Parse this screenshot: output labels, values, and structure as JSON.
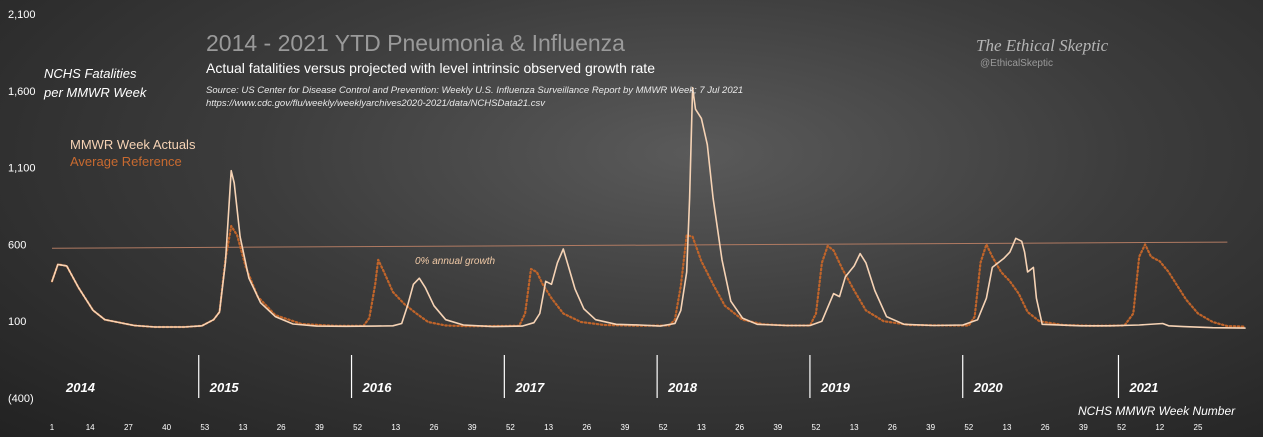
{
  "chart_data": {
    "type": "line",
    "title": "2014 - 2021 YTD Pneumonia & Influenza",
    "subtitle": "Actual fatalities versus projected with level intrinsic observed growth rate",
    "source_line1": "Source: US Center for Disease Control and Prevention: Weekly U.S. Influenza Surveillance Report by MMWR Week; 7 Jul 2021",
    "source_line2": "https://www.cdc.gov/flu/weekly/weeklyarchives2020-2021/data/NCHSData21.csv",
    "brand": "The Ethical Skeptic",
    "handle": "@EthicalSkeptic",
    "ylabel_line1": "NCHS Fatalities",
    "ylabel_line2": "per MMWR Week",
    "xlabel": "NCHS MMWR Week Number",
    "annotation": "0% annual growth",
    "yticks": [
      "2,100",
      "1,600",
      "1,100",
      "600",
      "100",
      "(400)"
    ],
    "ylim": [
      -400,
      2100
    ],
    "xticks": [
      "1",
      "14",
      "27",
      "40",
      "53",
      "13",
      "26",
      "39",
      "52",
      "13",
      "26",
      "39",
      "52",
      "13",
      "26",
      "39",
      "52",
      "13",
      "26",
      "39",
      "52",
      "13",
      "26",
      "39",
      "52",
      "13",
      "26",
      "39",
      "52",
      "12",
      "25"
    ],
    "year_labels": [
      "2014",
      "2015",
      "2016",
      "2017",
      "2018",
      "2019",
      "2020",
      "2021"
    ],
    "legend": [
      "MMWR Week Actuals",
      "Average Reference"
    ],
    "colors": {
      "actuals": "#f6d3b5",
      "reference": "#c0642a",
      "trend": "#b07a62"
    },
    "reference_line": {
      "start": 575,
      "end": 615
    },
    "series": [
      {
        "name": "MMWR Week Actuals",
        "anchors": [
          [
            0,
            360
          ],
          [
            2,
            470
          ],
          [
            5,
            460
          ],
          [
            9,
            320
          ],
          [
            14,
            170
          ],
          [
            18,
            110
          ],
          [
            22,
            95
          ],
          [
            28,
            72
          ],
          [
            35,
            62
          ],
          [
            45,
            62
          ],
          [
            51,
            70
          ],
          [
            55,
            110
          ],
          [
            57,
            160
          ],
          [
            59,
            480
          ],
          [
            61,
            1080
          ],
          [
            62,
            1000
          ],
          [
            64,
            650
          ],
          [
            67,
            380
          ],
          [
            71,
            220
          ],
          [
            76,
            130
          ],
          [
            82,
            82
          ],
          [
            90,
            68
          ],
          [
            100,
            67
          ],
          [
            110,
            68
          ],
          [
            116,
            70
          ],
          [
            119,
            85
          ],
          [
            121,
            200
          ],
          [
            123,
            340
          ],
          [
            125,
            380
          ],
          [
            127,
            320
          ],
          [
            130,
            200
          ],
          [
            134,
            110
          ],
          [
            140,
            75
          ],
          [
            150,
            65
          ],
          [
            160,
            68
          ],
          [
            164,
            90
          ],
          [
            166,
            150
          ],
          [
            168,
            360
          ],
          [
            170,
            340
          ],
          [
            172,
            480
          ],
          [
            174,
            570
          ],
          [
            176,
            440
          ],
          [
            178,
            310
          ],
          [
            181,
            180
          ],
          [
            185,
            110
          ],
          [
            192,
            80
          ],
          [
            200,
            75
          ],
          [
            207,
            68
          ],
          [
            212,
            85
          ],
          [
            214,
            170
          ],
          [
            216,
            420
          ],
          [
            217,
            900
          ],
          [
            218,
            1620
          ],
          [
            219,
            1480
          ],
          [
            221,
            1420
          ],
          [
            223,
            1250
          ],
          [
            225,
            900
          ],
          [
            228,
            500
          ],
          [
            231,
            230
          ],
          [
            235,
            120
          ],
          [
            240,
            80
          ],
          [
            250,
            72
          ],
          [
            258,
            72
          ],
          [
            262,
            100
          ],
          [
            264,
            190
          ],
          [
            266,
            280
          ],
          [
            268,
            260
          ],
          [
            270,
            390
          ],
          [
            273,
            460
          ],
          [
            275,
            540
          ],
          [
            277,
            480
          ],
          [
            280,
            300
          ],
          [
            284,
            130
          ],
          [
            290,
            80
          ],
          [
            300,
            72
          ],
          [
            310,
            75
          ],
          [
            315,
            110
          ],
          [
            318,
            250
          ],
          [
            320,
            450
          ],
          [
            322,
            480
          ],
          [
            324,
            510
          ],
          [
            326,
            550
          ],
          [
            328,
            640
          ],
          [
            330,
            620
          ],
          [
            331,
            550
          ],
          [
            332,
            420
          ],
          [
            334,
            450
          ],
          [
            335,
            250
          ],
          [
            337,
            80
          ],
          [
            350,
            70
          ],
          [
            360,
            70
          ],
          [
            370,
            75
          ],
          [
            378,
            85
          ],
          [
            380,
            70
          ],
          [
            385,
            65
          ],
          [
            395,
            58
          ],
          [
            406,
            55
          ]
        ]
      },
      {
        "name": "Average Reference",
        "anchors": [
          [
            0,
            360
          ],
          [
            2,
            470
          ],
          [
            5,
            460
          ],
          [
            9,
            320
          ],
          [
            14,
            170
          ],
          [
            18,
            110
          ],
          [
            22,
            95
          ],
          [
            28,
            72
          ],
          [
            35,
            62
          ],
          [
            45,
            62
          ],
          [
            51,
            70
          ],
          [
            55,
            110
          ],
          [
            57,
            160
          ],
          [
            59,
            500
          ],
          [
            61,
            720
          ],
          [
            63,
            660
          ],
          [
            66,
            450
          ],
          [
            70,
            260
          ],
          [
            76,
            140
          ],
          [
            85,
            82
          ],
          [
            96,
            70
          ],
          [
            106,
            70
          ],
          [
            108,
            120
          ],
          [
            110,
            340
          ],
          [
            111,
            500
          ],
          [
            113,
            420
          ],
          [
            116,
            290
          ],
          [
            120,
            210
          ],
          [
            124,
            150
          ],
          [
            128,
            95
          ],
          [
            134,
            72
          ],
          [
            140,
            68
          ],
          [
            148,
            68
          ],
          [
            159,
            70
          ],
          [
            161,
            150
          ],
          [
            163,
            440
          ],
          [
            165,
            420
          ],
          [
            167,
            340
          ],
          [
            170,
            250
          ],
          [
            174,
            150
          ],
          [
            180,
            95
          ],
          [
            188,
            75
          ],
          [
            200,
            70
          ],
          [
            210,
            72
          ],
          [
            212,
            110
          ],
          [
            214,
            330
          ],
          [
            216,
            660
          ],
          [
            218,
            650
          ],
          [
            221,
            490
          ],
          [
            225,
            340
          ],
          [
            229,
            200
          ],
          [
            235,
            110
          ],
          [
            242,
            80
          ],
          [
            250,
            72
          ],
          [
            258,
            72
          ],
          [
            260,
            150
          ],
          [
            262,
            480
          ],
          [
            264,
            590
          ],
          [
            266,
            560
          ],
          [
            269,
            440
          ],
          [
            273,
            300
          ],
          [
            277,
            170
          ],
          [
            283,
            100
          ],
          [
            292,
            75
          ],
          [
            306,
            72
          ],
          [
            312,
            72
          ],
          [
            314,
            130
          ],
          [
            316,
            480
          ],
          [
            318,
            600
          ],
          [
            320,
            520
          ],
          [
            323,
            420
          ],
          [
            326,
            360
          ],
          [
            329,
            280
          ],
          [
            332,
            160
          ],
          [
            336,
            100
          ],
          [
            344,
            75
          ],
          [
            354,
            70
          ],
          [
            365,
            72
          ],
          [
            368,
            150
          ],
          [
            370,
            520
          ],
          [
            372,
            600
          ],
          [
            374,
            520
          ],
          [
            377,
            490
          ],
          [
            380,
            420
          ],
          [
            383,
            330
          ],
          [
            386,
            240
          ],
          [
            390,
            150
          ],
          [
            395,
            95
          ],
          [
            400,
            68
          ],
          [
            406,
            65
          ]
        ]
      }
    ]
  }
}
